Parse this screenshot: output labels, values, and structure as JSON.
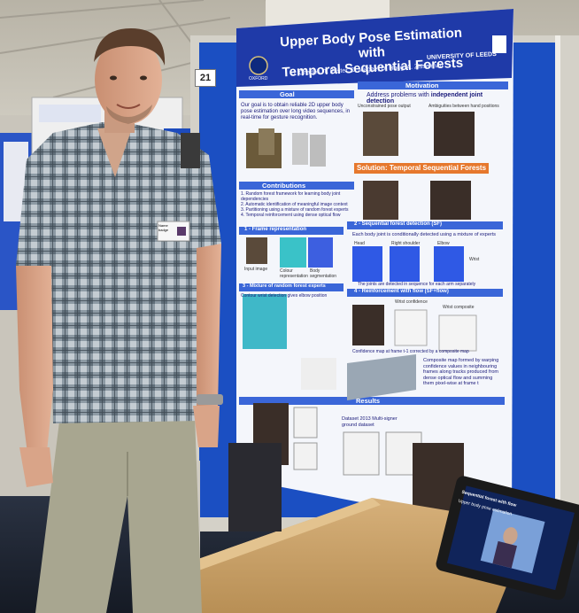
{
  "poster": {
    "number": "21",
    "title_line1": "Upper Body Pose Estimation with",
    "title_line2": "Temporal Sequential Forests",
    "authors": "J. Charles, T. Pfister, D. Magee, D. Hogg, A. Zisserman",
    "university": "UNIVERSITY OF LEEDS",
    "oxford": "OXFORD",
    "sections": {
      "goal": "Goal",
      "motivation": "Motivation",
      "contributions": "Contributions",
      "frame_representation": "1 - Frame representation",
      "sequential_forest": "2 - Sequential forest detection (SF)",
      "mixture": "3 - Mixture of random forest experts",
      "reinforcement": "4 - Reinforcement with flow (SF+flow)",
      "results": "Results"
    },
    "goal_text": "Our goal is to obtain reliable 2D upper body pose estimation over long video sequences, in real-time for gesture recognition.",
    "motivation_text_a": "Address problems with",
    "motivation_text_b": "independent joint detection",
    "motivation_cap_1": "Unconstrained pose output",
    "motivation_cap_2": "Ambiguities between hand positions",
    "solution": "Solution: Temporal Sequential Forests",
    "contributions_text": "1. Random forest framework for learning body joint dependencies\n2. Automatic identification of meaningful image context\n3. Partitioning using a mixture of random forest experts\n4. Temporal reinforcement using dense optical flow",
    "frame_caps": [
      "Input image",
      "Colour representation",
      "Body segmentation"
    ],
    "sf_text": "Each body joint is conditionally detected using a mixture of experts",
    "sf_caps": [
      "Head",
      "Right shoulder",
      "Elbow",
      "Wrist"
    ],
    "sf_note": "The joints are detected in sequence for each arm separately",
    "mixture_text": "Contour wrist detection gives elbow position",
    "flow_caps": [
      "Wrist confidence",
      "Wrist composite"
    ],
    "flow_note": "Confidence map at frame t-1 corrected by a composite map",
    "composite_text": "Composite map formed by warping confidence values in neighbouring frames along tracks produced from dense optical flow and summing them pixel-wise at frame t",
    "results_text": "Dataset 2013 Multi-signer ground dataset"
  },
  "badge": "Name badge",
  "tablet": {
    "header": "Sequential forest with flow",
    "subtitle": "Upper body pose estimation"
  },
  "colors": {
    "board_blue": "#1b4fc2",
    "poster_blue": "#1f3aa8",
    "section_blue": "#3a66d8",
    "solution_orange": "#e6782d",
    "shirt": "#7a8a96",
    "trousers": "#a8a690",
    "table": "#cba46a"
  }
}
